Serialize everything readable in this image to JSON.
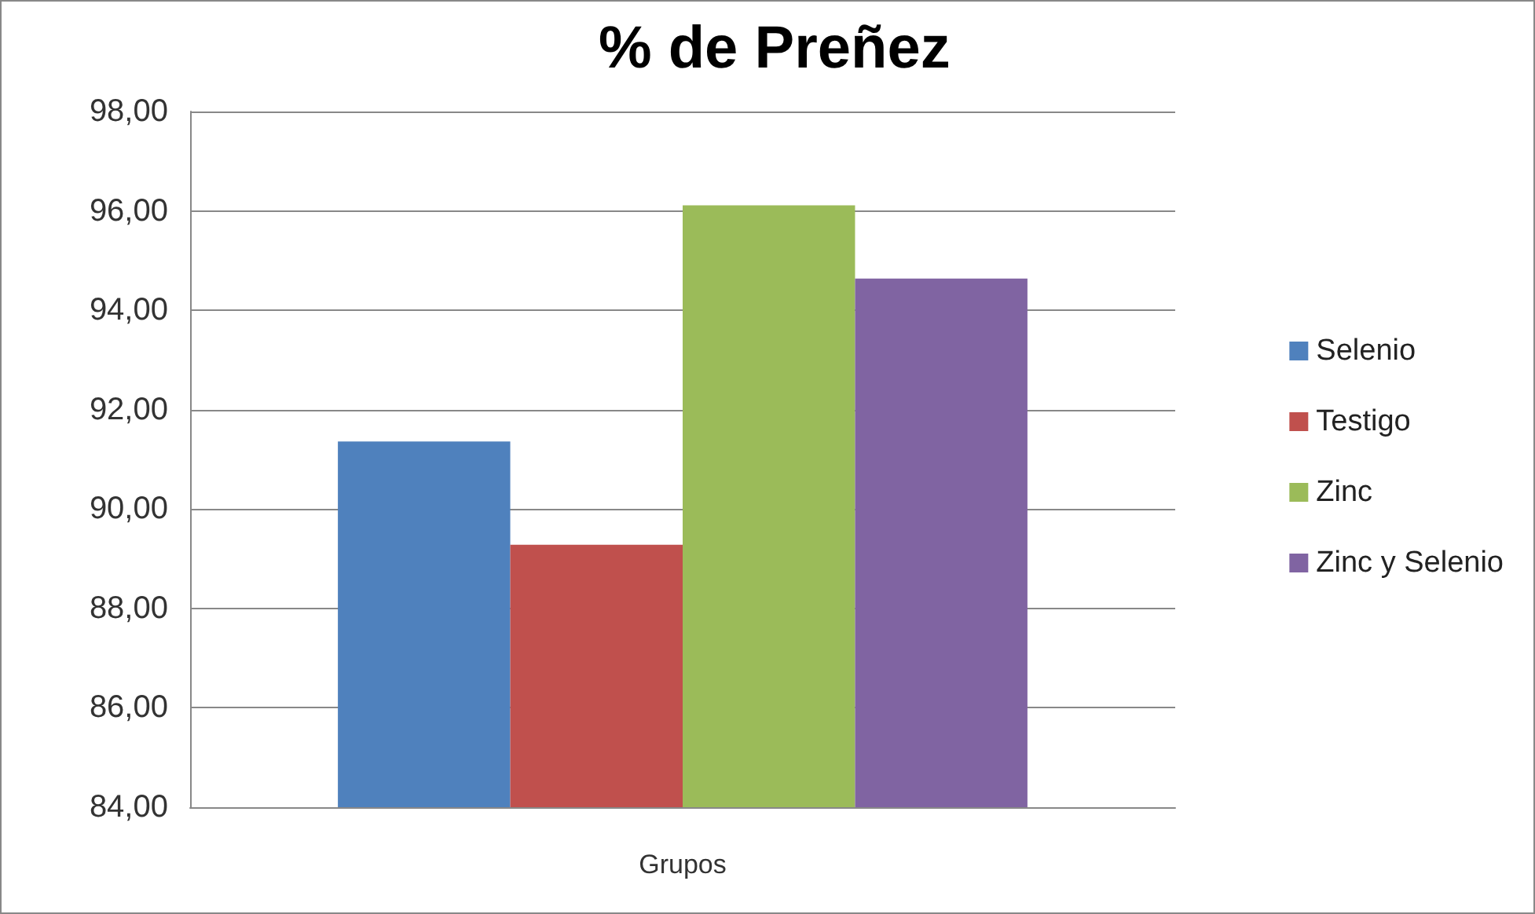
{
  "chart_data": {
    "type": "bar",
    "title": "% de Preñez",
    "categories": [
      "Grupos"
    ],
    "series": [
      {
        "name": "Selenio",
        "color": "#4f81bd",
        "values": [
          91.36
        ]
      },
      {
        "name": "Testigo",
        "color": "#c0504d",
        "values": [
          89.28
        ]
      },
      {
        "name": "Zinc",
        "color": "#9bbb59",
        "values": [
          96.11
        ]
      },
      {
        "name": "Zinc y Selenio",
        "color": "#8064a2",
        "values": [
          94.64
        ]
      }
    ],
    "ylim": [
      84,
      98
    ],
    "yticks": [
      {
        "value": 84,
        "label": "84,00"
      },
      {
        "value": 86,
        "label": "86,00"
      },
      {
        "value": 88,
        "label": "88,00"
      },
      {
        "value": 90,
        "label": "90,00"
      },
      {
        "value": 92,
        "label": "92,00"
      },
      {
        "value": 94,
        "label": "94,00"
      },
      {
        "value": 96,
        "label": "96,00"
      },
      {
        "value": 98,
        "label": "98,00"
      }
    ],
    "grid": "y",
    "legend": "right"
  }
}
